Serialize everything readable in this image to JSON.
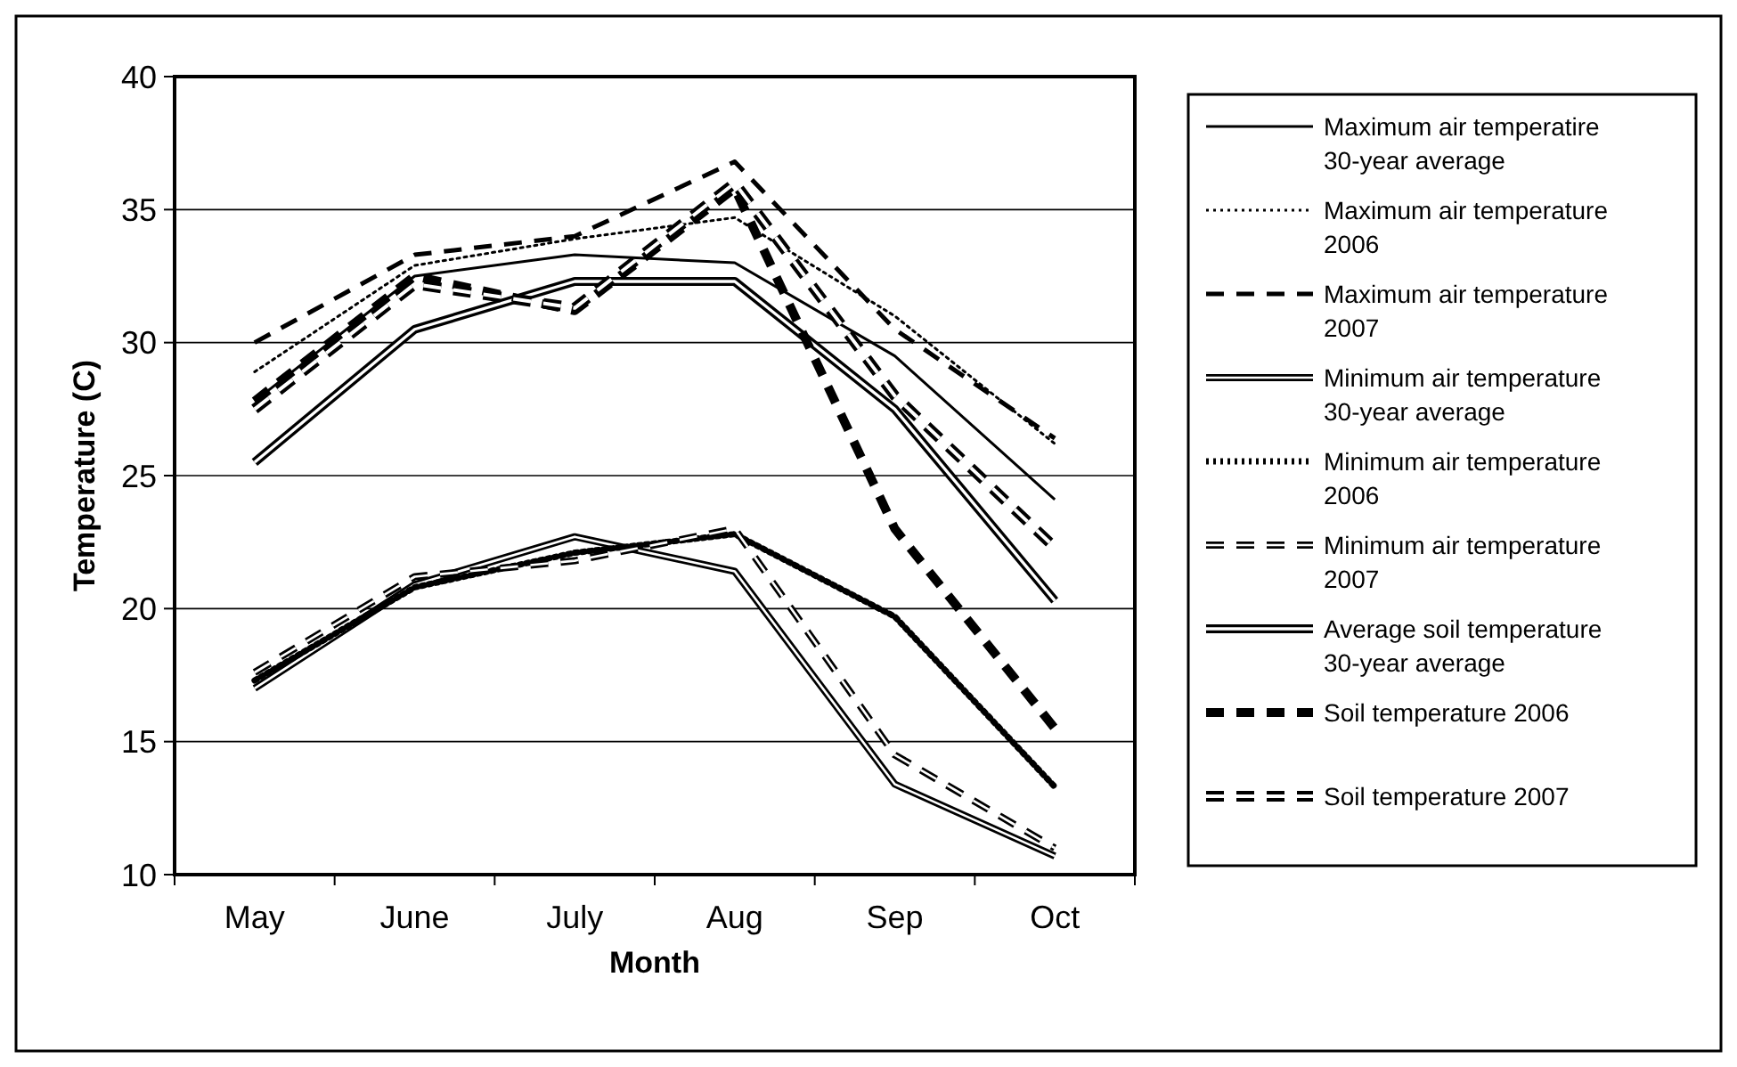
{
  "chart_data": {
    "type": "line",
    "xlabel": "Month",
    "ylabel": "Temperature (C)",
    "categories": [
      "May",
      "June",
      "July",
      "Aug",
      "Sep",
      "Oct"
    ],
    "ylim": [
      10,
      40
    ],
    "yticks": [
      10,
      15,
      20,
      25,
      30,
      35,
      40
    ],
    "grid": "y",
    "legend": "right",
    "series": [
      {
        "name": "Maximum air temperatire 30-year average",
        "color": "#000000",
        "line_style": "solid",
        "values": [
          27.8,
          32.5,
          33.3,
          33.0,
          29.5,
          24.1
        ]
      },
      {
        "name": "Maximum air temperature 2006",
        "color": "#000000",
        "line_style": "dotted",
        "values": [
          28.9,
          32.9,
          33.9,
          34.7,
          31.0,
          26.2
        ]
      },
      {
        "name": "Maximum air temperature 2007",
        "color": "#000000",
        "line_style": "dashed",
        "values": [
          30.0,
          33.3,
          34.0,
          36.8,
          30.5,
          26.4
        ]
      },
      {
        "name": "Minimum air temperature 30-year average",
        "color": "#000000",
        "line_style": "solid",
        "values": [
          17.0,
          20.9,
          22.7,
          21.4,
          13.4,
          10.7
        ]
      },
      {
        "name": "Minimum air temperature 2006",
        "color": "#000000",
        "line_style": "dotted",
        "values": [
          17.3,
          20.8,
          22.1,
          22.8,
          19.7,
          13.3
        ]
      },
      {
        "name": "Minimum air temperature 2007",
        "color": "#000000",
        "line_style": "dashed",
        "values": [
          17.6,
          21.2,
          21.8,
          23.0,
          14.5,
          11.0
        ]
      },
      {
        "name": "Average soil temperature 30-year average",
        "color": "#000000",
        "line_style": "solid",
        "values": [
          25.5,
          30.5,
          32.3,
          32.3,
          27.5,
          20.3
        ]
      },
      {
        "name": "Soil temperature 2006",
        "color": "#000000",
        "line_style": "dashed",
        "values": [
          27.8,
          32.5,
          31.2,
          35.8,
          23.0,
          15.5
        ]
      },
      {
        "name": "Soil temperature 2007",
        "color": "#000000",
        "line_style": "dashed",
        "values": [
          27.5,
          32.2,
          31.3,
          36.0,
          28.0,
          22.3
        ]
      }
    ]
  }
}
